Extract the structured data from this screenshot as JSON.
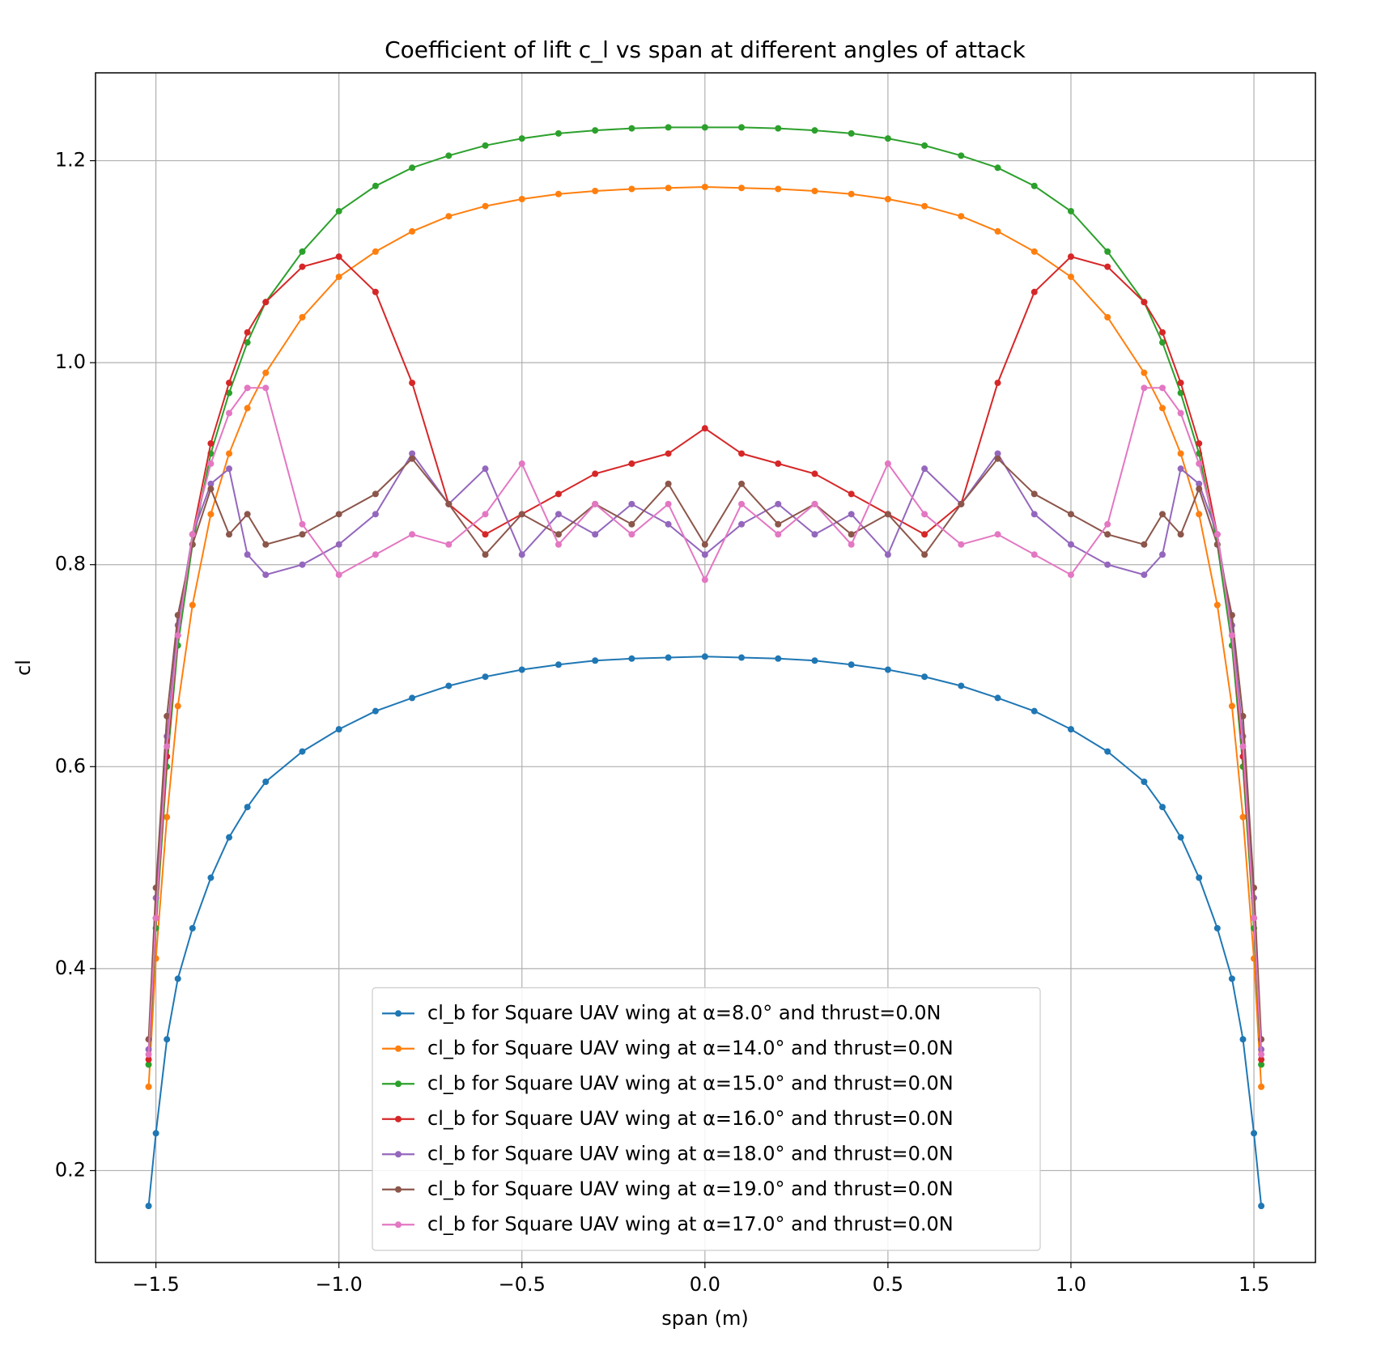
{
  "chart_data": {
    "type": "line",
    "title": "Coefficient of lift c_l vs span at different angles of attack",
    "xlabel": "span (m)",
    "ylabel": "cl",
    "xlim": [
      -1.665,
      1.668
    ],
    "ylim": [
      0.109,
      1.287
    ],
    "xticks": [
      {
        "value": -1.5,
        "label": "−1.5"
      },
      {
        "value": -1.0,
        "label": "−1.0"
      },
      {
        "value": -0.5,
        "label": "−0.5"
      },
      {
        "value": 0,
        "label": "0.0"
      },
      0.5,
      {
        "value": 1.0,
        "label": "1.0"
      },
      1.5
    ],
    "yticks": [
      0.2,
      0.4,
      0.6,
      0.8,
      {
        "value": 1.0,
        "label": "1.0"
      },
      1.2
    ],
    "grid": true,
    "legend": "lower center",
    "x": [
      -1.52,
      -1.5,
      -1.47,
      -1.44,
      -1.4,
      -1.35,
      -1.3,
      -1.25,
      -1.2,
      -1.1,
      -1.0,
      -0.9,
      -0.8,
      -0.7,
      -0.6,
      -0.5,
      -0.4,
      -0.3,
      -0.2,
      -0.1,
      0,
      0.1,
      0.2,
      0.3,
      0.4,
      0.5,
      0.6,
      0.7,
      0.8,
      0.9,
      1.0,
      1.1,
      1.2,
      1.25,
      1.3,
      1.35,
      1.4,
      1.44,
      1.47,
      1.5,
      1.52
    ],
    "series": [
      {
        "name": "cl_b for Square UAV wing at α=8.0° and thrust=0.0N",
        "color": "#1f77b4",
        "values": [
          0.165,
          0.237,
          0.33,
          0.39,
          0.44,
          0.49,
          0.53,
          0.56,
          0.585,
          0.615,
          0.637,
          0.655,
          0.668,
          0.68,
          0.689,
          0.696,
          0.701,
          0.705,
          0.707,
          0.708,
          0.709,
          0.708,
          0.707,
          0.705,
          0.701,
          0.696,
          0.689,
          0.68,
          0.668,
          0.655,
          0.637,
          0.615,
          0.585,
          0.56,
          0.53,
          0.49,
          0.44,
          0.39,
          0.33,
          0.237,
          0.165
        ]
      },
      {
        "name": "cl_b for Square UAV wing at α=14.0° and thrust=0.0N",
        "color": "#ff7f0e",
        "values": [
          0.283,
          0.41,
          0.55,
          0.66,
          0.76,
          0.85,
          0.91,
          0.955,
          0.99,
          1.045,
          1.085,
          1.11,
          1.13,
          1.145,
          1.155,
          1.162,
          1.167,
          1.17,
          1.172,
          1.173,
          1.174,
          1.173,
          1.172,
          1.17,
          1.167,
          1.162,
          1.155,
          1.145,
          1.13,
          1.11,
          1.085,
          1.045,
          0.99,
          0.955,
          0.91,
          0.85,
          0.76,
          0.66,
          0.55,
          0.41,
          0.283
        ]
      },
      {
        "name": "cl_b for Square UAV wing at α=15.0° and thrust=0.0N",
        "color": "#2ca02c",
        "values": [
          0.305,
          0.44,
          0.6,
          0.72,
          0.82,
          0.91,
          0.97,
          1.02,
          1.06,
          1.11,
          1.15,
          1.175,
          1.193,
          1.205,
          1.215,
          1.222,
          1.227,
          1.23,
          1.232,
          1.233,
          1.233,
          1.233,
          1.232,
          1.23,
          1.227,
          1.222,
          1.215,
          1.205,
          1.193,
          1.175,
          1.15,
          1.11,
          1.06,
          1.02,
          0.97,
          0.91,
          0.82,
          0.72,
          0.6,
          0.44,
          0.305
        ]
      },
      {
        "name": "cl_b for Square UAV wing at α=16.0° and thrust=0.0N",
        "color": "#d62728",
        "values": [
          0.31,
          0.45,
          0.61,
          0.73,
          0.83,
          0.92,
          0.98,
          1.03,
          1.06,
          1.095,
          1.105,
          1.07,
          0.98,
          0.86,
          0.83,
          0.85,
          0.87,
          0.89,
          0.9,
          0.91,
          0.935,
          0.91,
          0.9,
          0.89,
          0.87,
          0.85,
          0.83,
          0.86,
          0.98,
          1.07,
          1.105,
          1.095,
          1.06,
          1.03,
          0.98,
          0.92,
          0.83,
          0.73,
          0.61,
          0.45,
          0.31
        ]
      },
      {
        "name": "cl_b for Square UAV wing at α=18.0° and thrust=0.0N",
        "color": "#9467bd",
        "values": [
          0.32,
          0.47,
          0.63,
          0.74,
          0.83,
          0.88,
          0.895,
          0.81,
          0.79,
          0.8,
          0.82,
          0.85,
          0.91,
          0.86,
          0.895,
          0.81,
          0.85,
          0.83,
          0.86,
          0.84,
          0.81,
          0.84,
          0.86,
          0.83,
          0.85,
          0.81,
          0.895,
          0.86,
          0.91,
          0.85,
          0.82,
          0.8,
          0.79,
          0.81,
          0.895,
          0.88,
          0.83,
          0.74,
          0.63,
          0.47,
          0.32
        ]
      },
      {
        "name": "cl_b for Square UAV wing at α=19.0° and thrust=0.0N",
        "color": "#8c564b",
        "values": [
          0.33,
          0.48,
          0.65,
          0.75,
          0.82,
          0.875,
          0.83,
          0.85,
          0.82,
          0.83,
          0.85,
          0.87,
          0.905,
          0.86,
          0.81,
          0.85,
          0.83,
          0.86,
          0.84,
          0.88,
          0.82,
          0.88,
          0.84,
          0.86,
          0.83,
          0.85,
          0.81,
          0.86,
          0.905,
          0.87,
          0.85,
          0.83,
          0.82,
          0.85,
          0.83,
          0.875,
          0.82,
          0.75,
          0.65,
          0.48,
          0.33
        ]
      },
      {
        "name": "cl_b for Square UAV wing at α=17.0° and thrust=0.0N",
        "color": "#e377c2",
        "values": [
          0.315,
          0.45,
          0.62,
          0.73,
          0.83,
          0.9,
          0.95,
          0.975,
          0.975,
          0.84,
          0.79,
          0.81,
          0.83,
          0.82,
          0.85,
          0.9,
          0.82,
          0.86,
          0.83,
          0.86,
          0.785,
          0.86,
          0.83,
          0.86,
          0.82,
          0.9,
          0.85,
          0.82,
          0.83,
          0.81,
          0.79,
          0.84,
          0.975,
          0.975,
          0.95,
          0.9,
          0.83,
          0.73,
          0.62,
          0.45,
          0.315
        ]
      }
    ]
  }
}
